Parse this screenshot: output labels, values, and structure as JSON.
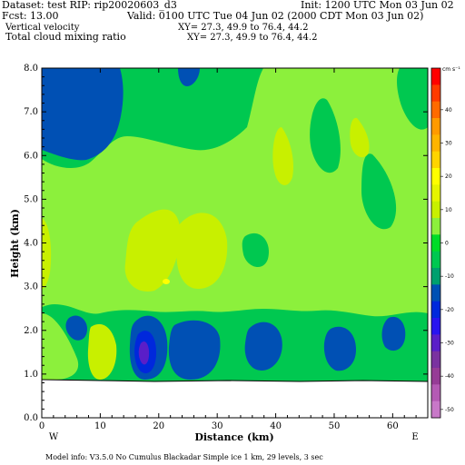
{
  "header": {
    "dataset": "Dataset: test  RIP: rip20020603_d3",
    "init": "Init: 1200 UTC Mon 03 Jun 02",
    "fcst": "Fcst:     13.00",
    "valid": "Valid: 0100 UTC Tue 04 Jun 02 (2000 CDT Mon 03 Jun 02)",
    "field1": "Vertical velocity",
    "xy1": "XY=  27.3, 49.9 to  76.4, 44.2",
    "field2": "Total cloud mixing ratio",
    "xy2": "XY=  27.3, 49.9 to  76.4, 44.2"
  },
  "footer": {
    "model_info": "Model info: V3.5.0  No Cumulus  Blackadar   Simple ice     1 km,   29 levels,     3 sec"
  },
  "chart_data": {
    "type": "heatmap",
    "title": "Vertical velocity",
    "xlabel": "Distance (km)",
    "ylabel": "Height (km)",
    "xlim": [
      0,
      66
    ],
    "ylim": [
      0.0,
      8.0
    ],
    "x_ticks": [
      "0",
      "10",
      "20",
      "30",
      "40",
      "50",
      "60"
    ],
    "y_ticks": [
      "0.0",
      "1.0",
      "2.0",
      "3.0",
      "4.0",
      "5.0",
      "6.0",
      "7.0",
      "8.0"
    ],
    "x_end_labels": {
      "left": "W",
      "right": "E"
    },
    "terrain_top_km": 0.87,
    "colorbar": {
      "units": "cm s⁻¹",
      "tick_labels": [
        "40",
        "30",
        "20",
        "10",
        "0",
        "-10",
        "-20",
        "-30",
        "-40",
        "-50"
      ],
      "colors": [
        "#ff0000",
        "#ff3a00",
        "#ff6a00",
        "#ff9a00",
        "#ffb400",
        "#ffd400",
        "#ffff00",
        "#e6f500",
        "#c8f000",
        "#8cf03c",
        "#00dc28",
        "#00c850",
        "#00a06e",
        "#0050b4",
        "#0028dc",
        "#2814f0",
        "#5a1ec8",
        "#7a32a0",
        "#963c96",
        "#b45ab4",
        "#c878c8"
      ]
    },
    "regions": [
      {
        "id": "base",
        "color": "#00c850",
        "note": "background, ~ -10 to 0 cm/s"
      },
      {
        "id": "light-green",
        "color": "#8cf03c",
        "note": "0 to 5 cm/s broad band"
      },
      {
        "id": "yellow-green",
        "color": "#c8f000",
        "note": "5 to 10 cm/s"
      },
      {
        "id": "yellow",
        "color": "#ffff00",
        "note": "10 to 15 cm/s"
      },
      {
        "id": "blue",
        "color": "#0050b4",
        "note": "-10 to -20 cm/s"
      },
      {
        "id": "blue2",
        "color": "#0028dc",
        "note": "-20 to -30 cm/s"
      },
      {
        "id": "purple",
        "color": "#5a1ec8",
        "note": "below -30 cm/s"
      }
    ]
  }
}
